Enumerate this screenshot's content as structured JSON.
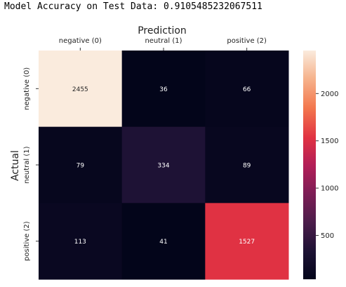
{
  "console": {
    "output_text": "Model Accuracy on Test Data: 0.9105485232067511"
  },
  "chart_data": {
    "type": "heatmap",
    "title": "",
    "xlabel": "Prediction",
    "ylabel": "Actual",
    "x_categories": [
      "negative (0)",
      "neutral (1)",
      "positive (2)"
    ],
    "y_categories": [
      "negative (0)",
      "neutral (1)",
      "positive (2)"
    ],
    "values": [
      [
        2455,
        36,
        66
      ],
      [
        79,
        334,
        89
      ],
      [
        113,
        41,
        1527
      ]
    ],
    "xaxis_position": "top",
    "colormap": "rocket",
    "colorbar": {
      "ticks": [
        500,
        1000,
        1500,
        2000
      ],
      "range": [
        36,
        2455
      ]
    },
    "grid": false
  }
}
